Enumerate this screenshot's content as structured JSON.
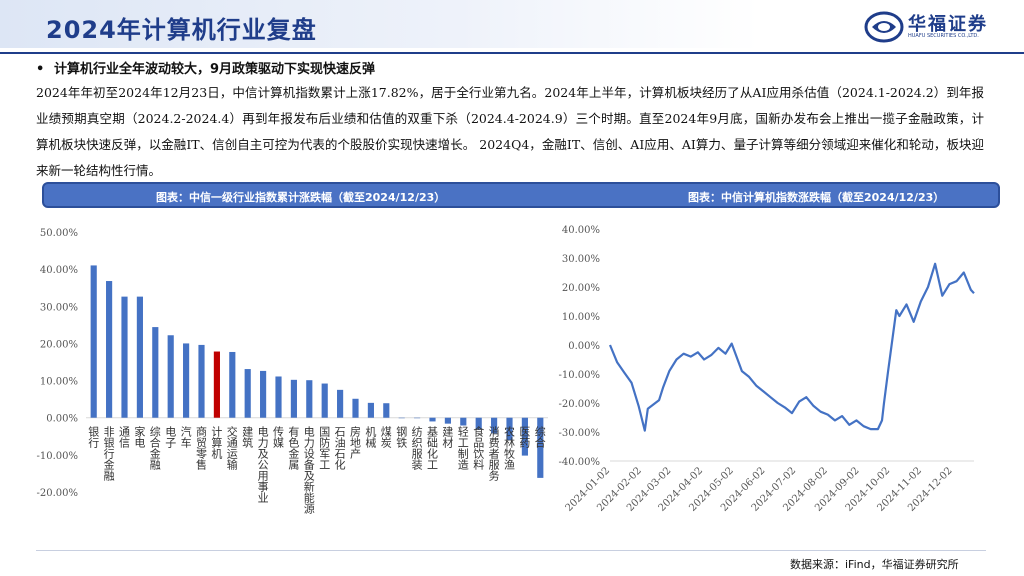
{
  "header": {
    "title": "2024年计算机行业复盘",
    "logo_cn": "华福证券",
    "logo_en": "HUAFU SECURITIES CO.,LTD."
  },
  "summary": {
    "bullet": "•",
    "headline": "计算机行业全年波动较大，9月政策驱动下实现快速反弹",
    "paragraph": "2024年年初至2024年12月23日，中信计算机指数累计上涨17.82%，居于全行业第九名。2024年上半年，计算机板块经历了从AI应用杀估值（2024.1-2024.2）到年报业绩预期真空期（2024.2-2024.4）再到年报发布后业绩和估值的双重下杀（2024.4-2024.9）三个时期。直至2024年9月底，国新办发布会上推出一揽子金融政策，计算机板块快速反弹，以金融IT、信创自主可控为代表的个股股价实现快速增长。 2024Q4，金融IT、信创、AI应用、AI算力、量子计算等细分领域迎来催化和轮动，板块迎来新一轮结构性行情。"
  },
  "captions": {
    "left": "图表：中信一级行业指数累计涨跌幅（截至2024/12/23）",
    "right": "图表：中信计算机指数涨跌幅（截至2024/12/23）"
  },
  "source": "数据来源：iFind，华福证券研究所",
  "colors": {
    "bar": "#4472c4",
    "highlight": "#c00000",
    "line": "#4472c4",
    "axis": "#d9d9d9",
    "title_blue": "#1f3d8a"
  },
  "chart_data": [
    {
      "type": "bar",
      "title": "中信一级行业指数累计涨跌幅（截至2024/12/23）",
      "categories": [
        "银行",
        "非银行金融",
        "通信",
        "家电",
        "综合金融",
        "电子",
        "汽车",
        "商贸零售",
        "计算机",
        "交通运输",
        "建筑",
        "电力及公用事业",
        "传媒",
        "有色金属",
        "电力设备及新能源",
        "国防军工",
        "石油石化",
        "房地产",
        "机械",
        "煤炭",
        "钢铁",
        "纺织服装",
        "基础化工",
        "建材",
        "轻工制造",
        "食品饮料",
        "消费者服务",
        "农林牧渔",
        "医药",
        "综合"
      ],
      "values": [
        41.0,
        36.8,
        32.6,
        32.6,
        24.4,
        22.2,
        20.0,
        19.6,
        17.82,
        17.7,
        13.1,
        12.6,
        11.1,
        10.2,
        10.1,
        9.2,
        7.5,
        5.1,
        4.0,
        3.9,
        0.0,
        -0.1,
        -1.0,
        -1.6,
        -2.1,
        -3.1,
        -4.2,
        -6.1,
        -10.2,
        -16.2
      ],
      "highlight": "计算机",
      "ylim": [
        -20,
        50
      ],
      "yticks": [
        "-20.00%",
        "-10.00%",
        "0.00%",
        "10.00%",
        "20.00%",
        "30.00%",
        "40.00%",
        "50.00%"
      ],
      "xlabel": "",
      "ylabel": "",
      "grid": false
    },
    {
      "type": "line",
      "title": "中信计算机指数涨跌幅（截至2024/12/23）",
      "x": [
        "2024-01-02",
        "2024-01-09",
        "2024-01-16",
        "2024-01-23",
        "2024-01-30",
        "2024-02-05",
        "2024-02-08",
        "2024-02-19",
        "2024-02-23",
        "2024-02-29",
        "2024-03-07",
        "2024-03-14",
        "2024-03-21",
        "2024-03-28",
        "2024-04-03",
        "2024-04-10",
        "2024-04-17",
        "2024-04-24",
        "2024-04-30",
        "2024-05-10",
        "2024-05-17",
        "2024-05-24",
        "2024-05-31",
        "2024-06-07",
        "2024-06-14",
        "2024-06-21",
        "2024-06-28",
        "2024-07-05",
        "2024-07-12",
        "2024-07-19",
        "2024-07-26",
        "2024-08-02",
        "2024-08-09",
        "2024-08-16",
        "2024-08-23",
        "2024-08-30",
        "2024-09-06",
        "2024-09-13",
        "2024-09-20",
        "2024-09-24",
        "2024-09-26",
        "2024-09-30",
        "2024-10-08",
        "2024-10-11",
        "2024-10-18",
        "2024-10-25",
        "2024-11-01",
        "2024-11-08",
        "2024-11-15",
        "2024-11-22",
        "2024-11-29",
        "2024-12-06",
        "2024-12-13",
        "2024-12-20",
        "2024-12-23"
      ],
      "values": [
        0.0,
        -6.0,
        -9.5,
        -13.0,
        -21.0,
        -29.5,
        -22.0,
        -19.0,
        -14.5,
        -9.0,
        -5.0,
        -3.0,
        -4.0,
        -2.5,
        -5.0,
        -3.5,
        -1.0,
        -3.0,
        0.5,
        -9.0,
        -11.0,
        -14.0,
        -16.0,
        -18.0,
        -20.0,
        -21.5,
        -23.5,
        -19.5,
        -18.0,
        -21.0,
        -23.0,
        -24.0,
        -26.0,
        -24.5,
        -27.5,
        -26.0,
        -28.0,
        -29.0,
        -29.0,
        -26.0,
        -20.0,
        -9.0,
        12.0,
        10.0,
        14.0,
        8.0,
        15.0,
        20.0,
        28.0,
        17.0,
        21.0,
        22.0,
        25.0,
        19.0,
        17.82
      ],
      "xticks": [
        "2024-01-02",
        "2024-02-02",
        "2024-03-02",
        "2024-04-02",
        "2024-05-02",
        "2024-06-02",
        "2024-07-02",
        "2024-08-02",
        "2024-09-02",
        "2024-10-02",
        "2024-11-02",
        "2024-12-02"
      ],
      "ylim": [
        -40,
        40
      ],
      "yticks": [
        "-40.00%",
        "-30.00%",
        "-20.00%",
        "-10.00%",
        "0.00%",
        "10.00%",
        "20.00%",
        "30.00%",
        "40.00%"
      ],
      "xlabel": "",
      "ylabel": "",
      "grid": false
    }
  ]
}
